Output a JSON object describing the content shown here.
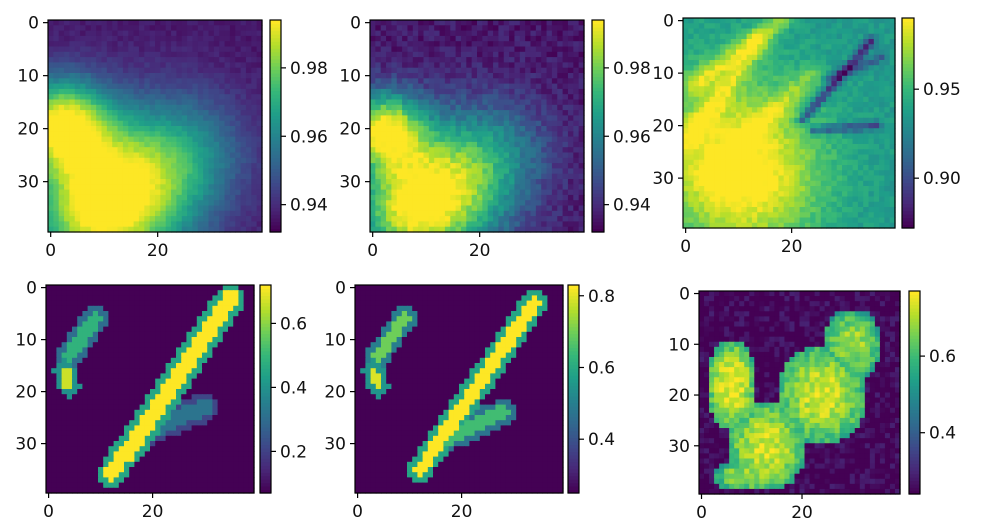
{
  "chart_data": [
    {
      "type": "heatmap",
      "colormap": "viridis",
      "grid": false,
      "x": [
        0,
        20
      ],
      "y": [
        0,
        10,
        20,
        30
      ],
      "xlim": [
        0,
        39
      ],
      "ylim": [
        0,
        39
      ],
      "colorbar": {
        "ticks": [
          0.94,
          0.96,
          0.98
        ],
        "range": [
          0.932,
          0.994
        ]
      },
      "field": {
        "kind": "smooth",
        "base": 0.936,
        "blobs": [
          [
            2,
            19,
            6,
            0.052
          ],
          [
            13,
            32,
            10,
            0.055
          ],
          [
            6,
            38,
            8,
            0.02
          ],
          [
            26,
            24,
            8,
            0.018
          ]
        ],
        "noise": 0.002
      }
    },
    {
      "type": "heatmap",
      "colormap": "viridis",
      "grid": false,
      "x": [
        0,
        20
      ],
      "y": [
        0,
        10,
        20,
        30
      ],
      "xlim": [
        0,
        39
      ],
      "ylim": [
        0,
        39
      ],
      "colorbar": {
        "ticks": [
          0.94,
          0.96,
          0.98
        ],
        "range": [
          0.932,
          0.994
        ]
      },
      "field": {
        "kind": "smooth",
        "base": 0.936,
        "blobs": [
          [
            2,
            20,
            5,
            0.05
          ],
          [
            12,
            32,
            9,
            0.056
          ],
          [
            5,
            37,
            6,
            0.02
          ],
          [
            24,
            24,
            7,
            0.016
          ]
        ],
        "noise": 0.004
      }
    },
    {
      "type": "heatmap",
      "colormap": "viridis",
      "grid": false,
      "x": [
        0,
        20
      ],
      "y": [
        0,
        10,
        20,
        30
      ],
      "xlim": [
        0,
        39
      ],
      "ylim": [
        0,
        39
      ],
      "colorbar": {
        "ticks": [
          0.9,
          0.95
        ],
        "range": [
          0.872,
          0.99
        ]
      },
      "field": {
        "kind": "streaks",
        "base": 0.935,
        "blobs": [
          [
            8,
            26,
            12,
            0.05
          ],
          [
            14,
            32,
            8,
            0.02
          ]
        ],
        "streaks": [
          [
            2,
            12,
            18,
            0,
            0.03
          ],
          [
            1,
            22,
            14,
            4,
            0.025
          ],
          [
            4,
            30,
            24,
            10,
            0.02
          ]
        ],
        "dark": [
          [
            22,
            19,
            35,
            4,
            0.05
          ],
          [
            24,
            21,
            36,
            20,
            0.04
          ],
          [
            27,
            11,
            37,
            7,
            0.03
          ]
        ],
        "noise": 0.006
      }
    },
    {
      "type": "heatmap",
      "colormap": "viridis",
      "grid": false,
      "x": [
        0,
        20
      ],
      "y": [
        0,
        10,
        20,
        30
      ],
      "xlim": [
        0,
        39
      ],
      "ylim": [
        0,
        39
      ],
      "colorbar": {
        "ticks": [
          0.2,
          0.4,
          0.6
        ],
        "range": [
          0.07,
          0.72
        ]
      },
      "field": {
        "kind": "shapes",
        "base": 0.07,
        "segments": [
          [
            15,
            32,
            35,
            2,
            1.6,
            0.7
          ],
          [
            12,
            36,
            15,
            31,
            1.4,
            0.7
          ]
        ],
        "small": [
          [
            4,
            13,
            9,
            6,
            1.3,
            0.42
          ],
          [
            3,
            16,
            4,
            19,
            1.0,
            0.6
          ]
        ],
        "tail": [
          [
            18,
            28,
            30,
            23,
            1.6,
            0.25
          ]
        ],
        "noise": 0.0
      }
    },
    {
      "type": "heatmap",
      "colormap": "viridis",
      "grid": false,
      "x": [
        0,
        20
      ],
      "y": [
        0,
        10,
        20,
        30
      ],
      "xlim": [
        0,
        39
      ],
      "ylim": [
        0,
        39
      ],
      "colorbar": {
        "ticks": [
          0.4,
          0.6,
          0.8
        ],
        "range": [
          0.25,
          0.83
        ]
      },
      "field": {
        "kind": "shapes",
        "base": 0.25,
        "segments": [
          [
            14,
            32,
            34,
            3,
            1.3,
            0.62
          ],
          [
            12,
            35,
            15,
            31,
            1.1,
            0.62
          ]
        ],
        "small": [
          [
            4,
            13,
            9,
            6,
            1.1,
            0.45
          ],
          [
            3,
            16,
            4,
            19,
            0.9,
            0.55
          ]
        ],
        "tail": [
          [
            17,
            29,
            28,
            24,
            1.4,
            0.4
          ]
        ],
        "noise": 0.0
      }
    },
    {
      "type": "heatmap",
      "colormap": "viridis",
      "grid": false,
      "x": [
        0,
        20
      ],
      "y": [
        0,
        10,
        20,
        30
      ],
      "xlim": [
        0,
        39
      ],
      "ylim": [
        0,
        39
      ],
      "colorbar": {
        "ticks": [
          0.4,
          0.6
        ],
        "range": [
          0.24,
          0.77
        ]
      },
      "field": {
        "kind": "patches",
        "base": 0.24,
        "regions": [
          [
            6,
            18,
            5,
            9,
            0.52
          ],
          [
            13,
            30,
            8,
            9,
            0.5
          ],
          [
            24,
            20,
            9,
            10,
            0.5
          ],
          [
            30,
            10,
            6,
            7,
            0.46
          ],
          [
            9,
            36,
            7,
            3,
            0.46
          ]
        ],
        "noise": 0.05
      }
    }
  ]
}
